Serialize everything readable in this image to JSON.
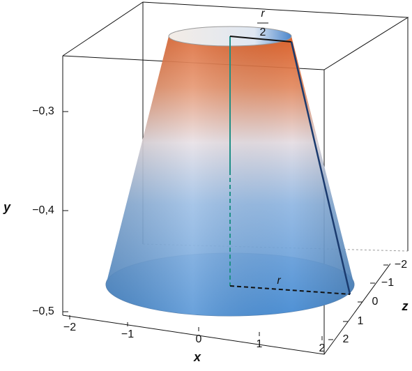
{
  "axes": {
    "x": {
      "label": "x",
      "ticks": [
        "−2",
        "−1",
        "0",
        "1",
        "2"
      ]
    },
    "y": {
      "label": "y",
      "ticks": [
        "−0,3",
        "−0,4",
        "−0,5"
      ]
    },
    "z": {
      "label": "z",
      "ticks": [
        "−2",
        "−1",
        "0",
        "1",
        "2"
      ]
    }
  },
  "annotations": {
    "top_radius_numerator": "r",
    "top_radius_denominator": "2",
    "bottom_radius": "r"
  }
}
